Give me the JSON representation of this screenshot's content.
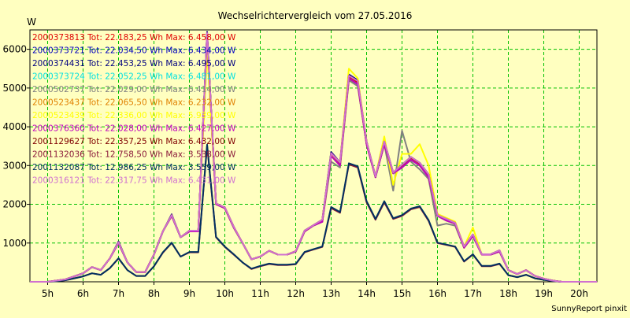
{
  "chart_data": {
    "type": "line",
    "title": "Wechselrichtervergleich vom 27.05.2016",
    "ylabel": "W",
    "xlabel": "",
    "footer": "SunnyReport pinxit",
    "ylim": [
      0,
      6500
    ],
    "xlim": [
      4.5,
      20.5
    ],
    "yticks": [
      1000,
      2000,
      3000,
      4000,
      5000,
      6000
    ],
    "xticks": [
      {
        "x": 5,
        "label": "5h"
      },
      {
        "x": 6,
        "label": "6h"
      },
      {
        "x": 7,
        "label": "7h"
      },
      {
        "x": 8,
        "label": "8h"
      },
      {
        "x": 9,
        "label": "9h"
      },
      {
        "x": 10,
        "label": "10h"
      },
      {
        "x": 11,
        "label": "11h"
      },
      {
        "x": 12,
        "label": "12h"
      },
      {
        "x": 13,
        "label": "13h"
      },
      {
        "x": 14,
        "label": "14h"
      },
      {
        "x": 15,
        "label": "15h"
      },
      {
        "x": 16,
        "label": "16h"
      },
      {
        "x": 17,
        "label": "17h"
      },
      {
        "x": 18,
        "label": "18h"
      },
      {
        "x": 19,
        "label": "19h"
      },
      {
        "x": 20,
        "label": "20h"
      }
    ],
    "grid": true,
    "legend_position": "top-left",
    "x": [
      4.5,
      5.0,
      5.25,
      5.5,
      5.75,
      6.0,
      6.25,
      6.5,
      6.75,
      7.0,
      7.25,
      7.5,
      7.75,
      8.0,
      8.25,
      8.5,
      8.75,
      9.0,
      9.25,
      9.5,
      9.75,
      10.0,
      10.25,
      10.5,
      10.75,
      11.0,
      11.25,
      11.5,
      11.75,
      12.0,
      12.25,
      12.5,
      12.75,
      13.0,
      13.25,
      13.5,
      13.75,
      14.0,
      14.25,
      14.5,
      14.75,
      15.0,
      15.25,
      15.5,
      15.75,
      16.0,
      16.25,
      16.5,
      16.75,
      17.0,
      17.25,
      17.5,
      17.75,
      18.0,
      18.25,
      18.5,
      18.75,
      19.0,
      19.25,
      19.5,
      19.75,
      20.0,
      20.5
    ],
    "series": [
      {
        "name": "2000373813 Tot: 22.183,25 Wh Max: 6.458,00 W",
        "color": "#e00000",
        "values": [
          0,
          0,
          30,
          60,
          140,
          220,
          380,
          300,
          600,
          1020,
          500,
          250,
          250,
          700,
          1300,
          1720,
          1150,
          1300,
          1300,
          6400,
          2000,
          1900,
          1400,
          1000,
          580,
          650,
          800,
          700,
          700,
          780,
          1300,
          1450,
          1580,
          3300,
          3050,
          5300,
          5150,
          3600,
          2700,
          3600,
          2800,
          3000,
          3200,
          3050,
          2750,
          1700,
          1600,
          1500,
          900,
          1200,
          700,
          700,
          800,
          300,
          200,
          300,
          150,
          80,
          30,
          0,
          0,
          0,
          0
        ]
      },
      {
        "name": "2000373721 Tot: 22.034,50 Wh Max: 6.434,00 W",
        "color": "#0000c0",
        "values": [
          0,
          0,
          30,
          60,
          140,
          220,
          380,
          300,
          600,
          1000,
          500,
          250,
          250,
          700,
          1300,
          1700,
          1150,
          1300,
          1300,
          6350,
          2000,
          1900,
          1400,
          1000,
          580,
          650,
          800,
          700,
          700,
          780,
          1300,
          1450,
          1550,
          3250,
          3000,
          5250,
          5100,
          3550,
          2700,
          3550,
          2800,
          2950,
          3150,
          3000,
          2700,
          1700,
          1580,
          1500,
          880,
          1180,
          700,
          700,
          780,
          300,
          200,
          300,
          150,
          80,
          30,
          0,
          0,
          0,
          0
        ]
      },
      {
        "name": "2000374431 Tot: 22.453,25 Wh Max: 6.495,00 W",
        "color": "#000080",
        "values": [
          0,
          0,
          30,
          60,
          140,
          220,
          380,
          300,
          600,
          1040,
          500,
          250,
          250,
          700,
          1300,
          1740,
          1150,
          1320,
          1320,
          6450,
          2020,
          1920,
          1420,
          1000,
          580,
          650,
          800,
          700,
          700,
          790,
          1320,
          1460,
          1600,
          3350,
          3080,
          5350,
          5200,
          3620,
          2720,
          3620,
          2820,
          3020,
          3220,
          3070,
          2770,
          1720,
          1620,
          1520,
          910,
          1220,
          710,
          710,
          810,
          300,
          200,
          300,
          150,
          80,
          30,
          0,
          0,
          0,
          0
        ]
      },
      {
        "name": "2000373724 Tot: 22.052,25 Wh Max: 6.481,00 W",
        "color": "#00e0e0",
        "values": [
          0,
          0,
          30,
          60,
          140,
          220,
          380,
          300,
          600,
          1000,
          500,
          250,
          250,
          700,
          1300,
          1700,
          1150,
          1300,
          1300,
          6400,
          2000,
          1900,
          1400,
          1000,
          580,
          650,
          800,
          700,
          700,
          780,
          1300,
          1450,
          1550,
          3250,
          3000,
          5250,
          5100,
          3550,
          2700,
          3550,
          2800,
          2950,
          3150,
          3000,
          2700,
          1700,
          1580,
          1500,
          880,
          1180,
          700,
          700,
          780,
          300,
          200,
          300,
          150,
          80,
          30,
          0,
          0,
          0,
          0
        ]
      },
      {
        "name": "2000502737 Tot: 22.029,00 Wh Max: 6.414,00 W",
        "color": "#808080",
        "values": [
          0,
          0,
          30,
          60,
          140,
          220,
          380,
          300,
          600,
          1000,
          500,
          250,
          250,
          700,
          1300,
          1700,
          1150,
          1300,
          1300,
          6350,
          2000,
          1900,
          1400,
          1000,
          580,
          650,
          800,
          700,
          700,
          780,
          1300,
          1450,
          1550,
          3100,
          2950,
          5200,
          5050,
          3550,
          2700,
          3550,
          2350,
          3900,
          3100,
          2900,
          2650,
          1450,
          1500,
          1450,
          880,
          1180,
          700,
          700,
          780,
          300,
          200,
          300,
          150,
          80,
          30,
          0,
          0,
          0,
          0
        ]
      },
      {
        "name": "2000523437 Tot: 22.065,50 Wh Max: 6.232,00 W",
        "color": "#e08000",
        "values": [
          0,
          0,
          30,
          60,
          140,
          220,
          380,
          300,
          600,
          1000,
          500,
          250,
          250,
          700,
          1300,
          1700,
          1150,
          1300,
          1300,
          6200,
          2000,
          1900,
          1400,
          1000,
          580,
          650,
          800,
          700,
          700,
          780,
          1300,
          1450,
          1550,
          3250,
          3000,
          5250,
          5100,
          3550,
          2700,
          3550,
          2800,
          2950,
          3150,
          3000,
          2700,
          1700,
          1580,
          1500,
          880,
          1180,
          700,
          700,
          780,
          300,
          200,
          300,
          150,
          80,
          30,
          0,
          0,
          0,
          0
        ]
      },
      {
        "name": "2000523439 Tot: 22.336,00 Wh Max: 5.939,00 W",
        "color": "#ffff00",
        "values": [
          0,
          0,
          30,
          60,
          140,
          220,
          380,
          300,
          600,
          1020,
          500,
          250,
          250,
          700,
          1300,
          1720,
          1150,
          1320,
          1320,
          5950,
          2020,
          1920,
          1420,
          1000,
          580,
          650,
          800,
          700,
          700,
          790,
          1320,
          1460,
          1600,
          3300,
          3080,
          5500,
          5250,
          3620,
          2720,
          3750,
          2500,
          3300,
          3300,
          3550,
          3000,
          1750,
          1650,
          1550,
          910,
          1400,
          700,
          700,
          800,
          300,
          200,
          300,
          150,
          80,
          30,
          0,
          0,
          0,
          0
        ]
      },
      {
        "name": "2000376360 Tot: 22.028,00 Wh Max: 6.427,00 W",
        "color": "#c000c0",
        "values": [
          0,
          0,
          30,
          60,
          140,
          220,
          380,
          300,
          600,
          1000,
          500,
          250,
          250,
          700,
          1300,
          1700,
          1150,
          1300,
          1300,
          6400,
          2000,
          1900,
          1400,
          1000,
          580,
          650,
          800,
          700,
          700,
          780,
          1300,
          1450,
          1550,
          3250,
          3000,
          5250,
          5100,
          3550,
          2700,
          3550,
          2800,
          2950,
          3150,
          3000,
          2700,
          1700,
          1580,
          1500,
          880,
          1180,
          700,
          700,
          780,
          300,
          200,
          300,
          150,
          80,
          30,
          0,
          0,
          0,
          0
        ]
      },
      {
        "name": "2001129627 Tot: 22.357,25 Wh Max: 6.432,00 W",
        "color": "#800000",
        "values": [
          0,
          0,
          30,
          60,
          140,
          220,
          380,
          300,
          600,
          1020,
          500,
          250,
          250,
          700,
          1300,
          1720,
          1150,
          1320,
          1320,
          6420,
          2020,
          1920,
          1420,
          1000,
          580,
          650,
          800,
          700,
          700,
          790,
          1320,
          1460,
          1600,
          3320,
          3080,
          5320,
          5180,
          3620,
          2720,
          3620,
          2820,
          3020,
          3220,
          3070,
          2770,
          1720,
          1620,
          1520,
          910,
          1220,
          710,
          710,
          810,
          300,
          200,
          300,
          150,
          80,
          30,
          0,
          0,
          0,
          0
        ]
      },
      {
        "name": "2001132036 Tot: 12.758,50 Wh Max: 3.538,00 W",
        "color": "#8b1a3a",
        "values": [
          0,
          0,
          15,
          40,
          90,
          140,
          220,
          180,
          350,
          600,
          300,
          150,
          150,
          400,
          750,
          1000,
          650,
          760,
          760,
          3520,
          1150,
          900,
          700,
          500,
          330,
          400,
          460,
          430,
          430,
          450,
          760,
          830,
          900,
          1900,
          1780,
          3030,
          2950,
          2050,
          1600,
          2050,
          1620,
          1700,
          1870,
          1930,
          1570,
          1000,
          950,
          900,
          520,
          700,
          400,
          400,
          460,
          170,
          120,
          180,
          90,
          50,
          20,
          0,
          0,
          0,
          0
        ]
      },
      {
        "name": "2001132087 Tot: 12.986,25 Wh Max: 3.559,00 W",
        "color": "#003060",
        "values": [
          0,
          0,
          15,
          40,
          90,
          140,
          220,
          180,
          350,
          610,
          300,
          150,
          150,
          400,
          760,
          1010,
          650,
          770,
          770,
          3540,
          1160,
          910,
          710,
          500,
          340,
          410,
          470,
          440,
          440,
          460,
          770,
          840,
          910,
          1930,
          1800,
          3060,
          2980,
          2080,
          1620,
          2080,
          1640,
          1720,
          1890,
          1950,
          1590,
          1010,
          960,
          910,
          530,
          710,
          410,
          410,
          470,
          170,
          120,
          180,
          90,
          50,
          20,
          0,
          0,
          0,
          0
        ]
      },
      {
        "name": "2000316121 Tot: 22.317,75 Wh Max: 6.431,00 W",
        "color": "#d070d0",
        "values": [
          0,
          0,
          30,
          60,
          140,
          220,
          380,
          300,
          600,
          1020,
          500,
          250,
          250,
          700,
          1300,
          1720,
          1150,
          1320,
          1320,
          6420,
          2020,
          1920,
          1420,
          1000,
          580,
          650,
          800,
          700,
          700,
          790,
          1320,
          1460,
          1600,
          3320,
          3080,
          5320,
          5180,
          3620,
          2720,
          3620,
          2820,
          3020,
          3220,
          3070,
          2770,
          1720,
          1620,
          1520,
          910,
          1220,
          710,
          710,
          810,
          300,
          200,
          300,
          150,
          80,
          30,
          0,
          0,
          0,
          0
        ]
      }
    ]
  }
}
